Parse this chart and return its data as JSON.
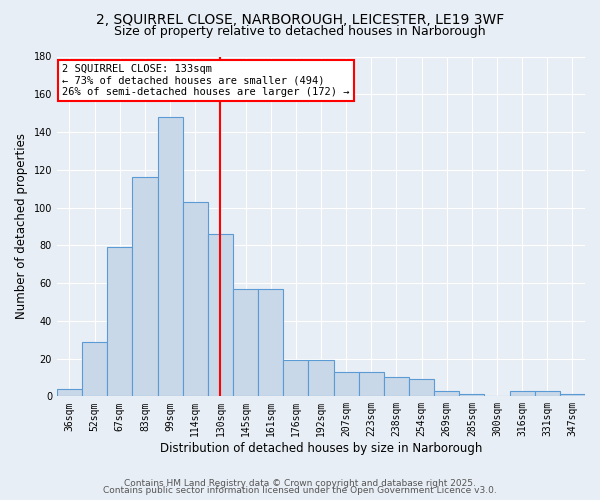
{
  "title_line1": "2, SQUIRREL CLOSE, NARBOROUGH, LEICESTER, LE19 3WF",
  "title_line2": "Size of property relative to detached houses in Narborough",
  "xlabel": "Distribution of detached houses by size in Narborough",
  "ylabel": "Number of detached properties",
  "categories": [
    "36sqm",
    "52sqm",
    "67sqm",
    "83sqm",
    "99sqm",
    "114sqm",
    "130sqm",
    "145sqm",
    "161sqm",
    "176sqm",
    "192sqm",
    "207sqm",
    "223sqm",
    "238sqm",
    "254sqm",
    "269sqm",
    "285sqm",
    "300sqm",
    "316sqm",
    "331sqm",
    "347sqm"
  ],
  "values": [
    4,
    29,
    79,
    116,
    148,
    103,
    86,
    57,
    57,
    19,
    19,
    13,
    13,
    10,
    9,
    3,
    1,
    0,
    3,
    3,
    1
  ],
  "bar_color": "#c8d8e8",
  "bar_edge_color": "#5b9bd5",
  "vline_x_index": 6,
  "vline_color": "red",
  "annotation_title": "2 SQUIRREL CLOSE: 133sqm",
  "annotation_line1": "← 73% of detached houses are smaller (494)",
  "annotation_line2": "26% of semi-detached houses are larger (172) →",
  "annotation_box_color": "white",
  "annotation_box_edge_color": "red",
  "ylim": [
    0,
    180
  ],
  "yticks": [
    0,
    20,
    40,
    60,
    80,
    100,
    120,
    140,
    160,
    180
  ],
  "footer_line1": "Contains HM Land Registry data © Crown copyright and database right 2025.",
  "footer_line2": "Contains public sector information licensed under the Open Government Licence v3.0.",
  "background_color": "#e8eef5",
  "plot_background_color": "#e8eef5",
  "grid_color": "white",
  "title_fontsize": 10,
  "subtitle_fontsize": 9,
  "axis_label_fontsize": 8.5,
  "tick_fontsize": 7,
  "footer_fontsize": 6.5,
  "annot_fontsize": 7.5
}
